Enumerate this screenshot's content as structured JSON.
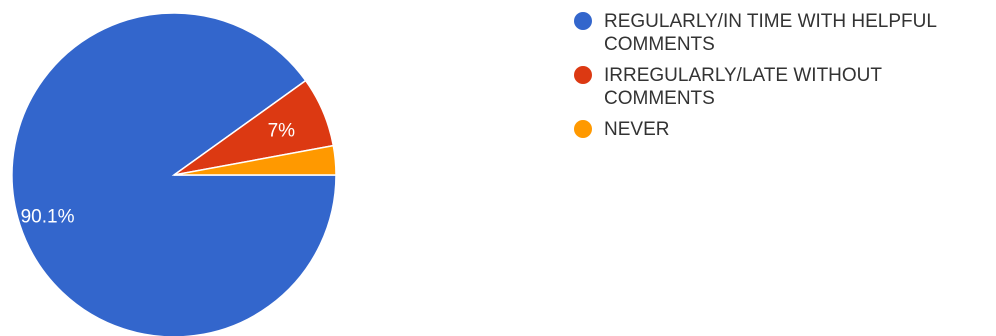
{
  "chart_data": {
    "type": "pie",
    "slices": [
      {
        "label": "REGULARLY/IN TIME WITH HELPFUL COMMENTS",
        "value": 90.1,
        "display": "90.1%",
        "color": "#3366cc"
      },
      {
        "label": "IRREGULARLY/LATE WITHOUT COMMENTS",
        "value": 7,
        "display": "7%",
        "color": "#dc3912"
      },
      {
        "label": "NEVER",
        "value": 2.9,
        "display": "",
        "color": "#ff9900"
      }
    ],
    "legend_position": "right"
  }
}
